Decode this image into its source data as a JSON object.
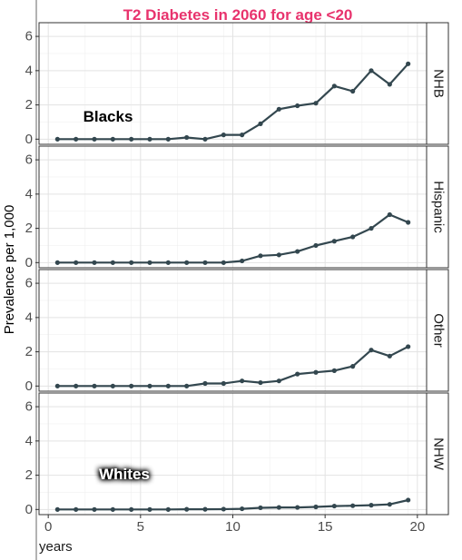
{
  "chart_data": {
    "type": "line",
    "title": "T2 Diabetes in 2060 for age <20",
    "xlabel": "years",
    "ylabel": "Prevalence per 1,000",
    "xlim": [
      -0.5,
      20.5
    ],
    "ylim": [
      -0.3,
      6.8
    ],
    "xticks": [
      0,
      5,
      10,
      15,
      20
    ],
    "yticks": [
      0,
      2,
      4,
      6
    ],
    "grid": true,
    "line_color": "#33474f",
    "x": [
      0.5,
      1.5,
      2.5,
      3.5,
      4.5,
      5.5,
      6.5,
      7.5,
      8.5,
      9.5,
      10.5,
      11.5,
      12.5,
      13.5,
      14.5,
      15.5,
      16.5,
      17.5,
      18.5,
      19.5
    ],
    "panels": [
      {
        "strip": "NHB",
        "annotation": "Blacks",
        "annotation_style": "dark",
        "values": [
          0,
          0,
          0,
          0,
          0,
          0,
          0,
          0.1,
          0,
          0.25,
          0.25,
          0.9,
          1.75,
          1.95,
          2.1,
          3.1,
          2.8,
          4.0,
          3.2,
          4.4
        ]
      },
      {
        "strip": "Hispanic",
        "annotation": "",
        "annotation_style": "",
        "values": [
          0,
          0,
          0,
          0,
          0,
          0,
          0,
          0,
          0,
          0,
          0.1,
          0.4,
          0.45,
          0.65,
          1.0,
          1.25,
          1.5,
          2.0,
          2.8,
          2.35
        ]
      },
      {
        "strip": "Other",
        "annotation": "",
        "annotation_style": "",
        "values": [
          0,
          0,
          0,
          0,
          0,
          0,
          0,
          0,
          0.15,
          0.15,
          0.3,
          0.2,
          0.3,
          0.7,
          0.8,
          0.9,
          1.15,
          2.1,
          1.75,
          2.3
        ]
      },
      {
        "strip": "NHW",
        "annotation": "Whites",
        "annotation_style": "light",
        "values": [
          0,
          0,
          0,
          0,
          0,
          0,
          0,
          0.01,
          0.01,
          0.02,
          0.04,
          0.1,
          0.12,
          0.12,
          0.15,
          0.2,
          0.22,
          0.25,
          0.3,
          0.55
        ]
      }
    ]
  }
}
